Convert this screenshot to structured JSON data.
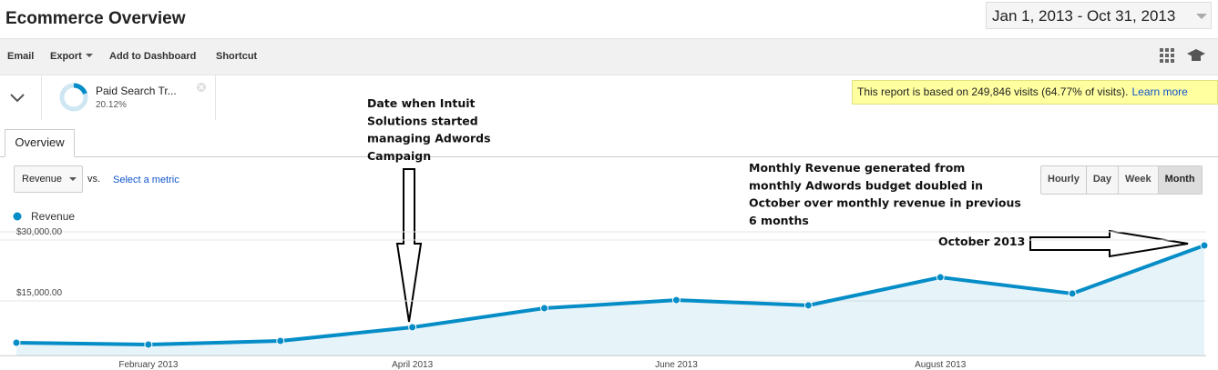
{
  "header": {
    "title": "Ecommerce Overview",
    "date_range": "Jan 1, 2013 - Oct 31, 2013"
  },
  "toolbar": [
    "Email",
    "Export",
    "Add to Dashboard",
    "Shortcut"
  ],
  "segment": {
    "name": "Paid Search Tr...",
    "share": "20.12%"
  },
  "notice": {
    "text": "This report is based on 249,846 visits (64.77% of visits).",
    "link": "Learn more"
  },
  "tabs": [
    "Overview"
  ],
  "controls": {
    "metric": "Revenue",
    "vs": "vs.",
    "compare": "Select a metric",
    "granularity": [
      "Hourly",
      "Day",
      "Week",
      "Month"
    ]
  },
  "chart_data": {
    "type": "area",
    "categories": [
      null,
      "February 2013",
      null,
      "April 2013",
      null,
      "June 2013",
      null,
      "August 2013",
      null,
      null
    ],
    "series": [
      {
        "name": "Revenue",
        "color": "#058dc7",
        "values": [
          4700,
          4250,
          5150,
          8500,
          13200,
          15200,
          13900,
          20800,
          16800,
          28650
        ]
      }
    ],
    "ylim": [
      1500,
      32000
    ],
    "yticks": [
      {
        "value": 15000,
        "label": "$15,000.00"
      },
      {
        "value": 30000,
        "label": "$30,000.00"
      }
    ],
    "grid": true,
    "annotations": [
      {
        "lines": [
          "Date when Intuit",
          "Solutions started",
          "managing Adwords",
          "Campaign"
        ]
      },
      {
        "lines": [
          "Monthly Revenue generated from",
          "monthly Adwords budget doubled in",
          "October over monthly revenue in previous",
          "6 months"
        ]
      },
      {
        "lines": [
          "October 2013"
        ]
      }
    ]
  }
}
